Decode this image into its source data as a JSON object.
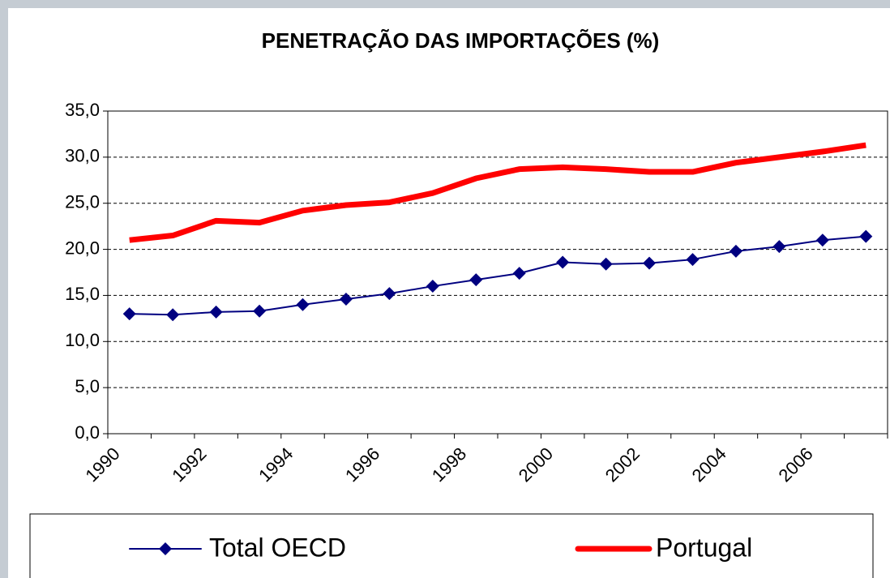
{
  "chart_data": {
    "type": "line",
    "title": "PENETRAÇÃO DAS IMPORTAÇÕES (%)",
    "categories": [
      "1990",
      null,
      "1992",
      null,
      "1994",
      null,
      "1996",
      null,
      "1998",
      null,
      "2000",
      null,
      "2002",
      null,
      "2004",
      null,
      "2006",
      null
    ],
    "series": [
      {
        "name": "Total OECD",
        "color": "#000080",
        "marker": "diamond",
        "values": [
          13.0,
          12.9,
          13.2,
          13.3,
          14.0,
          14.6,
          15.2,
          16.0,
          16.7,
          17.4,
          18.6,
          18.4,
          18.5,
          18.9,
          19.8,
          20.3,
          21.0,
          21.4
        ]
      },
      {
        "name": "Portugal",
        "color": "#ff0000",
        "values": [
          21.0,
          21.5,
          23.1,
          22.9,
          24.2,
          24.8,
          25.1,
          26.1,
          27.7,
          28.7,
          28.9,
          28.7,
          28.4,
          28.4,
          29.4,
          30.0,
          30.6,
          31.3
        ]
      }
    ],
    "ylim": [
      0,
      35
    ],
    "yticks": [
      {
        "value": 0,
        "label": "0,0"
      },
      {
        "value": 5,
        "label": "5,0"
      },
      {
        "value": 10,
        "label": "10,0"
      },
      {
        "value": 15,
        "label": "15,0"
      },
      {
        "value": 20,
        "label": "20,0"
      },
      {
        "value": 25,
        "label": "25,0"
      },
      {
        "value": 30,
        "label": "30,0"
      },
      {
        "value": 35,
        "label": "35,0"
      }
    ],
    "grid": true,
    "legend": "bottom"
  }
}
